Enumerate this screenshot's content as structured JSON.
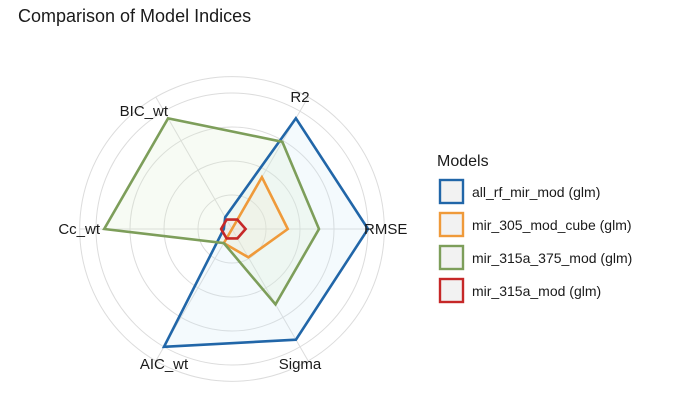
{
  "chart_data": {
    "type": "radar",
    "title": "Comparison of Model Indices",
    "axes": [
      "R2",
      "RMSE",
      "Sigma",
      "AIC_wt",
      "Cc_wt",
      "BIC_wt"
    ],
    "rlim": [
      0,
      1
    ],
    "grid": true,
    "series": [
      {
        "name": "all_rf_mir_mod (glm)",
        "color": "#2166a8",
        "fill": "#cfe6f5",
        "values": [
          0.94,
          1.0,
          0.94,
          1.0,
          0.06,
          0.1
        ]
      },
      {
        "name": "mir_305_mod_cube (glm)",
        "color": "#ef9a3a",
        "fill": "#fbe3c8",
        "values": [
          0.44,
          0.41,
          0.24,
          0.12,
          0.0,
          0.0
        ]
      },
      {
        "name": "mir_315a_375_mod (glm)",
        "color": "#7d9e5a",
        "fill": "#dcebcb",
        "values": [
          0.74,
          0.64,
          0.64,
          0.12,
          0.94,
          0.94
        ]
      },
      {
        "name": "mir_315a_mod (glm)",
        "color": "#c62828",
        "fill": "#f7d3d3",
        "values": [
          0.08,
          0.1,
          0.08,
          0.08,
          0.08,
          0.08
        ]
      }
    ],
    "legend": {
      "title": "Models",
      "position": "right"
    }
  }
}
